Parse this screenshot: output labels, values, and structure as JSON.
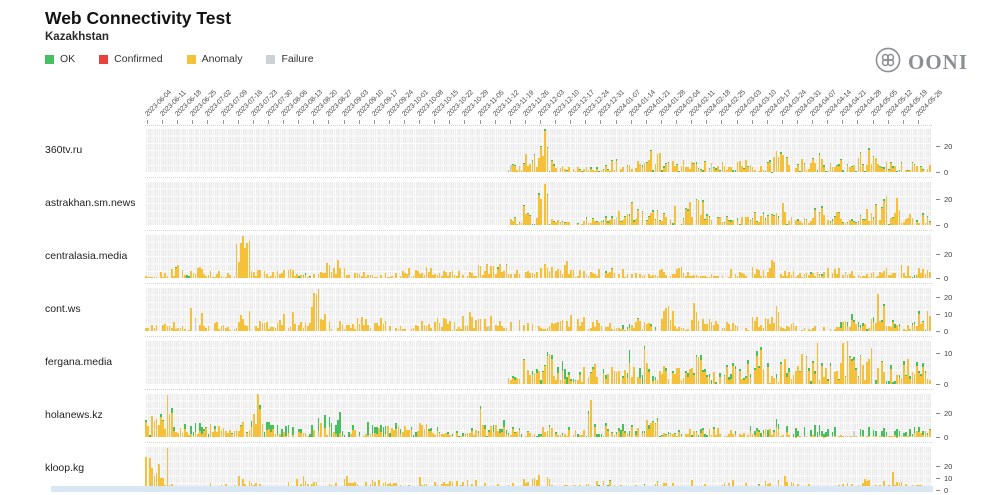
{
  "header": {
    "title": "Web Connectivity Test",
    "subtitle": "Kazakhstan"
  },
  "logo": {
    "text": "OONI"
  },
  "legend": [
    {
      "label": "OK",
      "color": "#45bf5f"
    },
    {
      "label": "Confirmed",
      "color": "#e8413c"
    },
    {
      "label": "Anomaly",
      "color": "#f5c13b"
    },
    {
      "label": "Failure",
      "color": "#ccd1d5"
    }
  ],
  "chart_data": {
    "type": "bar",
    "stacked": true,
    "x_resolution": "daily bars, weekly tick labels",
    "grid": true,
    "legend_position": "top-left",
    "colors": {
      "ok": "#45bf5f",
      "confirmed": "#e8413c",
      "anomaly": "#f5c13b",
      "failure": "#ccd1d5"
    },
    "x_tick_labels": [
      "2023-06-04",
      "2023-06-11",
      "2023-06-18",
      "2023-06-25",
      "2023-07-02",
      "2023-07-09",
      "2023-07-16",
      "2023-07-23",
      "2023-07-30",
      "2023-08-06",
      "2023-08-13",
      "2023-08-20",
      "2023-08-27",
      "2023-09-03",
      "2023-09-10",
      "2023-09-17",
      "2023-09-24",
      "2023-10-01",
      "2023-10-08",
      "2023-10-15",
      "2023-10-22",
      "2023-10-29",
      "2023-11-05",
      "2023-11-12",
      "2023-11-19",
      "2023-11-26",
      "2023-12-03",
      "2023-12-10",
      "2023-12-17",
      "2023-12-24",
      "2023-12-31",
      "2024-01-07",
      "2024-01-14",
      "2024-01-21",
      "2024-01-28",
      "2024-02-04",
      "2024-02-11",
      "2024-02-18",
      "2024-02-25",
      "2024-03-03",
      "2024-03-10",
      "2024-03-17",
      "2024-03-24",
      "2024-03-31",
      "2024-04-07",
      "2024-04-14",
      "2024-04-21",
      "2024-04-28",
      "2024-05-05",
      "2024-05-12",
      "2024-05-19",
      "2024-05-26"
    ],
    "sites": [
      {
        "name": "360tv.ru",
        "ymax": 34,
        "yticks": [
          20,
          0
        ],
        "anomaly_weekly": [
          0,
          0,
          0,
          0,
          0,
          0,
          0,
          0,
          0,
          0,
          0,
          0,
          0,
          0,
          0,
          0,
          0,
          0,
          0,
          0,
          0,
          0,
          0,
          0,
          4,
          10,
          18,
          4,
          3,
          3,
          6,
          9,
          6,
          12,
          10,
          8,
          6,
          5,
          6,
          7,
          5,
          14,
          11,
          7,
          9,
          6,
          10,
          12,
          9,
          6,
          5,
          4
        ],
        "ok_weekly": [
          0,
          0,
          0,
          0,
          0,
          0,
          0,
          0,
          0,
          0,
          0,
          0,
          0,
          0,
          0,
          0,
          0,
          0,
          0,
          0,
          0,
          0,
          0,
          0,
          1,
          1,
          1,
          1,
          1,
          1,
          1,
          1,
          1,
          1,
          1,
          1,
          1,
          1,
          1,
          1,
          1,
          1,
          1,
          1,
          1,
          1,
          1,
          1,
          1,
          1,
          1,
          1
        ],
        "spikes": [
          {
            "week": 26,
            "value": 32
          }
        ]
      },
      {
        "name": "astrakhan.sm.news",
        "ymax": 34,
        "yticks": [
          20,
          0
        ],
        "anomaly_weekly": [
          0,
          0,
          0,
          0,
          0,
          0,
          0,
          0,
          0,
          0,
          0,
          0,
          0,
          0,
          0,
          0,
          0,
          0,
          0,
          0,
          0,
          0,
          0,
          0,
          4,
          12,
          18,
          4,
          3,
          4,
          5,
          8,
          12,
          8,
          6,
          10,
          14,
          8,
          6,
          5,
          6,
          8,
          12,
          10,
          12,
          8,
          6,
          10,
          14,
          16,
          10,
          6
        ],
        "ok_weekly": [
          0,
          0,
          0,
          0,
          0,
          0,
          0,
          0,
          0,
          0,
          0,
          0,
          0,
          0,
          0,
          0,
          0,
          0,
          0,
          0,
          0,
          0,
          0,
          0,
          1,
          1,
          1,
          1,
          1,
          1,
          1,
          1,
          1,
          1,
          1,
          1,
          1,
          1,
          1,
          1,
          1,
          1,
          1,
          1,
          1,
          1,
          1,
          1,
          1,
          1,
          1,
          1
        ],
        "spikes": [
          {
            "week": 26,
            "value": 32
          }
        ]
      },
      {
        "name": "centralasia.media",
        "ymax": 36,
        "yticks": [
          20,
          0
        ],
        "anomaly_weekly": [
          3,
          5,
          8,
          6,
          4,
          3,
          20,
          6,
          4,
          5,
          4,
          8,
          10,
          6,
          4,
          3,
          4,
          6,
          8,
          5,
          4,
          6,
          8,
          10,
          6,
          4,
          8,
          12,
          6,
          4,
          6,
          5,
          3,
          4,
          5,
          6,
          4,
          3,
          5,
          4,
          8,
          10,
          4,
          3,
          5,
          6,
          4,
          3,
          4,
          6,
          8,
          6
        ],
        "ok_weekly": [
          0,
          0,
          1.5,
          0,
          0,
          0,
          0,
          0,
          0,
          0,
          1.5,
          0,
          0,
          0,
          0,
          0,
          0,
          0,
          0,
          0,
          0,
          0,
          0,
          1.5,
          0,
          0,
          0,
          0,
          0,
          0,
          1.5,
          0,
          0,
          0,
          0,
          0,
          0,
          0,
          0,
          0,
          0,
          0,
          0,
          0,
          1.5,
          0,
          0,
          0,
          0,
          0,
          1.5,
          0
        ],
        "spikes": [
          {
            "week": 6,
            "value": 34
          }
        ]
      },
      {
        "name": "cont.ws",
        "ymax": 26,
        "yticks": [
          20,
          10,
          0
        ],
        "anomaly_weekly": [
          4,
          6,
          3,
          10,
          4,
          3,
          8,
          4,
          6,
          8,
          7,
          16,
          5,
          4,
          6,
          10,
          4,
          3,
          5,
          6,
          4,
          8,
          6,
          5,
          10,
          6,
          4,
          5,
          8,
          6,
          4,
          3,
          5,
          4,
          10,
          4,
          12,
          6,
          4,
          3,
          6,
          10,
          4,
          2,
          3,
          4,
          6,
          3,
          14,
          4,
          3,
          8
        ],
        "ok_weekly": [
          0,
          0,
          0,
          0,
          0,
          0,
          0,
          0,
          0,
          0,
          0,
          0,
          0,
          0,
          0,
          0,
          0,
          0,
          0,
          0,
          0,
          0,
          0,
          0,
          0,
          0,
          0,
          0,
          0,
          0,
          0,
          2,
          2,
          2,
          0,
          0,
          0,
          0,
          0,
          0,
          0,
          0,
          0,
          0,
          0,
          0,
          3,
          3,
          3,
          3,
          1,
          2
        ],
        "spikes": [
          {
            "week": 11,
            "value": 25
          },
          {
            "week": 48,
            "value": 22
          }
        ]
      },
      {
        "name": "fergana.media",
        "ymax": 14,
        "yticks": [
          10,
          0
        ],
        "anomaly_weekly": [
          0,
          0,
          0,
          0,
          0,
          0,
          0,
          0,
          0,
          0,
          0,
          0,
          0,
          0,
          0,
          0,
          0,
          0,
          0,
          0,
          0,
          0,
          0,
          0,
          3,
          6,
          8,
          3,
          2,
          5,
          4,
          3,
          6,
          8,
          5,
          4,
          6,
          3,
          4,
          5,
          8,
          4,
          6,
          9,
          5,
          4,
          10,
          6,
          8,
          5,
          6,
          4
        ],
        "ok_weekly": [
          0,
          0,
          0,
          0,
          0,
          0,
          0,
          0,
          0,
          0,
          0,
          0,
          0,
          0,
          0,
          0,
          0,
          0,
          0,
          0,
          0,
          0,
          0,
          0,
          1,
          1,
          1,
          3,
          1,
          1,
          1,
          1,
          3,
          1,
          1,
          1,
          1,
          1,
          1,
          1,
          1,
          1,
          1,
          1,
          1,
          1,
          1,
          1,
          1,
          1,
          1,
          1
        ],
        "spikes": [
          {
            "week": 44,
            "value": 13
          }
        ]
      },
      {
        "name": "holanews.kz",
        "ymax": 36,
        "yticks": [
          20,
          0
        ],
        "anomaly_weekly": [
          18,
          20,
          6,
          4,
          8,
          6,
          10,
          22,
          6,
          4,
          5,
          8,
          6,
          4,
          3,
          5,
          6,
          8,
          10,
          4,
          3,
          4,
          16,
          8,
          5,
          4,
          6,
          3,
          4,
          14,
          6,
          5,
          8,
          10,
          4,
          3,
          5,
          6,
          4,
          3,
          4,
          6,
          3,
          1,
          1,
          1,
          1,
          1,
          1,
          1,
          2,
          4
        ],
        "ok_weekly": [
          2,
          3,
          8,
          6,
          2,
          1,
          2,
          3,
          6,
          8,
          2,
          10,
          12,
          4,
          8,
          6,
          4,
          3,
          2,
          2,
          1,
          2,
          3,
          4,
          2,
          1,
          2,
          2,
          3,
          2,
          2,
          4,
          3,
          2,
          1,
          2,
          3,
          2,
          1,
          2,
          3,
          4,
          5,
          5,
          6,
          5,
          6,
          5,
          6,
          5,
          4,
          3
        ],
        "spikes": [
          {
            "week": 1,
            "value": 34
          },
          {
            "week": 7,
            "value": 35
          },
          {
            "week": 29,
            "value": 30
          }
        ]
      },
      {
        "name": "kloop.kg",
        "ymax": 36,
        "yticks": [
          20,
          10,
          0
        ],
        "anomaly_weekly": [
          20,
          8,
          4,
          3,
          5,
          4,
          10,
          4,
          3,
          5,
          8,
          6,
          4,
          8,
          6,
          10,
          4,
          3,
          8,
          10,
          6,
          12,
          5,
          4,
          6,
          8,
          10,
          4,
          3,
          5,
          6,
          4,
          3,
          5,
          4,
          3,
          6,
          4,
          8,
          4,
          3,
          6,
          10,
          4,
          2,
          3,
          4,
          6,
          5,
          14,
          6,
          4
        ],
        "ok_weekly": [
          0,
          0,
          0,
          0,
          0,
          0,
          0,
          0,
          0,
          0,
          0,
          0,
          0,
          0,
          0,
          0,
          0,
          0,
          0,
          0,
          0,
          0,
          0,
          0,
          0,
          0,
          0,
          0,
          0,
          0,
          1,
          0,
          0,
          1,
          0,
          0,
          0,
          0,
          0,
          0,
          1,
          0,
          0,
          0,
          0,
          0,
          0,
          0,
          0,
          0,
          0,
          0
        ],
        "spikes": [
          {
            "week": 1,
            "value": 34
          },
          {
            "week": 49,
            "value": 15
          }
        ]
      }
    ]
  }
}
